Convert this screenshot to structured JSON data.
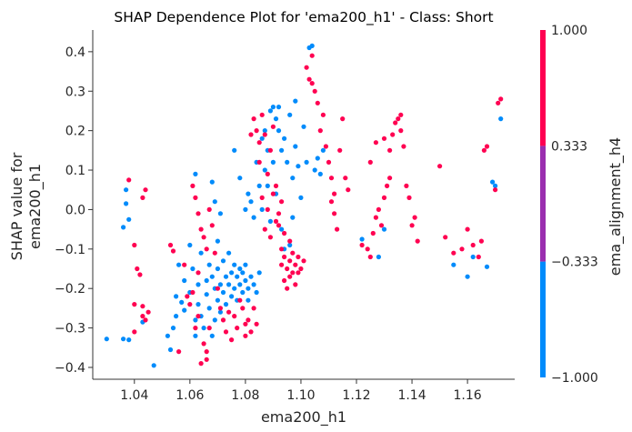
{
  "chart_data": {
    "type": "scatter",
    "title": "SHAP Dependence Plot for 'ema200_h1' - Class: Short",
    "xlabel": "ema200_h1",
    "ylabel_lines": [
      "SHAP value for",
      "ema200_h1"
    ],
    "xlim": [
      1.025,
      1.177
    ],
    "ylim": [
      -0.43,
      0.455
    ],
    "xticks": [
      1.04,
      1.06,
      1.08,
      1.1,
      1.12,
      1.14,
      1.16
    ],
    "xtick_labels": [
      "1.04",
      "1.06",
      "1.08",
      "1.10",
      "1.12",
      "1.14",
      "1.16"
    ],
    "yticks": [
      -0.4,
      -0.3,
      -0.2,
      -0.1,
      0.0,
      0.1,
      0.2,
      0.3,
      0.4
    ],
    "ytick_labels": [
      "−0.4",
      "−0.3",
      "−0.2",
      "−0.1",
      "0.0",
      "0.1",
      "0.2",
      "0.3",
      "0.4"
    ],
    "colorbar": {
      "label": "ema_alignment_h4",
      "tick_labels": [
        "1.000",
        "0.333",
        "−0.333",
        "−1.000"
      ],
      "bands": [
        {
          "from": -1.0,
          "to": -0.333,
          "color": "#008bfb"
        },
        {
          "from": -0.333,
          "to": 0.333,
          "color": "#9a2eaf"
        },
        {
          "from": 0.333,
          "to": 1.0,
          "color": "#ff0051"
        }
      ]
    },
    "colors": {
      "-1": "#008bfb",
      "1": "#ff0051"
    },
    "series": [
      {
        "color_value": -1,
        "points": [
          [
            1.03,
            -0.328
          ],
          [
            1.036,
            -0.328
          ],
          [
            1.038,
            -0.33
          ],
          [
            1.043,
            -0.285
          ],
          [
            1.047,
            -0.395
          ],
          [
            1.037,
            0.05
          ],
          [
            1.037,
            0.015
          ],
          [
            1.036,
            -0.045
          ],
          [
            1.038,
            -0.025
          ],
          [
            1.052,
            -0.32
          ],
          [
            1.053,
            -0.355
          ],
          [
            1.054,
            -0.3
          ],
          [
            1.055,
            -0.27
          ],
          [
            1.055,
            -0.22
          ],
          [
            1.056,
            -0.14
          ],
          [
            1.057,
            -0.235
          ],
          [
            1.058,
            -0.18
          ],
          [
            1.058,
            -0.255
          ],
          [
            1.06,
            -0.09
          ],
          [
            1.06,
            -0.21
          ],
          [
            1.061,
            -0.15
          ],
          [
            1.062,
            -0.28
          ],
          [
            1.062,
            -0.32
          ],
          [
            1.063,
            -0.19
          ],
          [
            1.063,
            -0.24
          ],
          [
            1.064,
            -0.11
          ],
          [
            1.064,
            -0.27
          ],
          [
            1.065,
            -0.3
          ],
          [
            1.066,
            -0.18
          ],
          [
            1.066,
            -0.215
          ],
          [
            1.067,
            -0.25
          ],
          [
            1.067,
            -0.14
          ],
          [
            1.068,
            -0.32
          ],
          [
            1.068,
            -0.17
          ],
          [
            1.069,
            -0.2
          ],
          [
            1.069,
            -0.28
          ],
          [
            1.07,
            -0.15
          ],
          [
            1.07,
            -0.23
          ],
          [
            1.071,
            -0.19
          ],
          [
            1.071,
            -0.26
          ],
          [
            1.072,
            -0.13
          ],
          [
            1.072,
            -0.21
          ],
          [
            1.073,
            -0.17
          ],
          [
            1.073,
            -0.24
          ],
          [
            1.074,
            -0.19
          ],
          [
            1.074,
            -0.11
          ],
          [
            1.075,
            -0.22
          ],
          [
            1.075,
            -0.16
          ],
          [
            1.076,
            -0.14
          ],
          [
            1.076,
            -0.2
          ],
          [
            1.077,
            -0.17
          ],
          [
            1.077,
            -0.23
          ],
          [
            1.078,
            -0.15
          ],
          [
            1.078,
            -0.19
          ],
          [
            1.079,
            -0.16
          ],
          [
            1.079,
            -0.21
          ],
          [
            1.08,
            -0.18
          ],
          [
            1.08,
            -0.14
          ],
          [
            1.081,
            -0.2
          ],
          [
            1.081,
            -0.23
          ],
          [
            1.082,
            -0.17
          ],
          [
            1.083,
            -0.19
          ],
          [
            1.084,
            -0.21
          ],
          [
            1.085,
            -0.16
          ],
          [
            1.076,
            0.15
          ],
          [
            1.078,
            0.08
          ],
          [
            1.08,
            0.0
          ],
          [
            1.081,
            0.04
          ],
          [
            1.082,
            0.02
          ],
          [
            1.083,
            -0.02
          ],
          [
            1.084,
            0.12
          ],
          [
            1.085,
            0.06
          ],
          [
            1.086,
            0.18
          ],
          [
            1.086,
            0.0
          ],
          [
            1.087,
            0.1
          ],
          [
            1.087,
            0.2
          ],
          [
            1.088,
            0.15
          ],
          [
            1.088,
            0.06
          ],
          [
            1.089,
            0.25
          ],
          [
            1.089,
            -0.03
          ],
          [
            1.09,
            0.26
          ],
          [
            1.09,
            0.12
          ],
          [
            1.091,
            0.23
          ],
          [
            1.091,
            0.04
          ],
          [
            1.092,
            0.2
          ],
          [
            1.092,
            0.26
          ],
          [
            1.093,
            0.15
          ],
          [
            1.093,
            -0.05
          ],
          [
            1.094,
            0.18
          ],
          [
            1.095,
            0.12
          ],
          [
            1.096,
            0.24
          ],
          [
            1.097,
            0.08
          ],
          [
            1.097,
            -0.02
          ],
          [
            1.098,
            0.16
          ],
          [
            1.099,
            0.11
          ],
          [
            1.1,
            0.03
          ],
          [
            1.101,
            0.21
          ],
          [
            1.102,
            0.12
          ],
          [
            1.103,
            0.41
          ],
          [
            1.104,
            0.415
          ],
          [
            1.105,
            0.1
          ],
          [
            1.106,
            0.13
          ],
          [
            1.107,
            0.09
          ],
          [
            1.108,
            0.15
          ],
          [
            1.098,
            0.275
          ],
          [
            1.096,
            -0.09
          ],
          [
            1.094,
            -0.1
          ],
          [
            1.062,
            0.09
          ],
          [
            1.068,
            0.07
          ],
          [
            1.07,
            -0.08
          ],
          [
            1.069,
            0.02
          ],
          [
            1.071,
            -0.01
          ],
          [
            1.122,
            -0.075
          ],
          [
            1.128,
            -0.12
          ],
          [
            1.13,
            -0.05
          ],
          [
            1.155,
            -0.14
          ],
          [
            1.16,
            -0.17
          ],
          [
            1.162,
            -0.12
          ],
          [
            1.167,
            -0.145
          ],
          [
            1.169,
            0.07
          ],
          [
            1.17,
            0.06
          ],
          [
            1.172,
            0.23
          ]
        ]
      },
      {
        "color_value": 1,
        "points": [
          [
            1.038,
            0.075
          ],
          [
            1.043,
            0.03
          ],
          [
            1.044,
            0.05
          ],
          [
            1.04,
            -0.09
          ],
          [
            1.04,
            -0.24
          ],
          [
            1.042,
            -0.165
          ],
          [
            1.043,
            -0.245
          ],
          [
            1.044,
            -0.28
          ],
          [
            1.045,
            -0.26
          ],
          [
            1.04,
            -0.31
          ],
          [
            1.041,
            -0.15
          ],
          [
            1.043,
            -0.27
          ],
          [
            1.053,
            -0.09
          ],
          [
            1.054,
            -0.105
          ],
          [
            1.056,
            -0.36
          ],
          [
            1.058,
            -0.14
          ],
          [
            1.059,
            -0.22
          ],
          [
            1.06,
            -0.24
          ],
          [
            1.061,
            -0.21
          ],
          [
            1.062,
            -0.3
          ],
          [
            1.063,
            -0.16
          ],
          [
            1.063,
            -0.27
          ],
          [
            1.064,
            -0.39
          ],
          [
            1.065,
            -0.34
          ],
          [
            1.066,
            -0.36
          ],
          [
            1.066,
            -0.38
          ],
          [
            1.067,
            -0.3
          ],
          [
            1.061,
            0.06
          ],
          [
            1.062,
            0.03
          ],
          [
            1.063,
            -0.01
          ],
          [
            1.064,
            -0.05
          ],
          [
            1.065,
            -0.07
          ],
          [
            1.066,
            -0.1
          ],
          [
            1.067,
            0.0
          ],
          [
            1.068,
            -0.04
          ],
          [
            1.069,
            -0.11
          ],
          [
            1.07,
            -0.2
          ],
          [
            1.071,
            -0.25
          ],
          [
            1.072,
            -0.28
          ],
          [
            1.073,
            -0.31
          ],
          [
            1.074,
            -0.26
          ],
          [
            1.075,
            -0.33
          ],
          [
            1.076,
            -0.27
          ],
          [
            1.077,
            -0.3
          ],
          [
            1.078,
            -0.23
          ],
          [
            1.079,
            -0.25
          ],
          [
            1.08,
            -0.32
          ],
          [
            1.081,
            -0.28
          ],
          [
            1.082,
            -0.31
          ],
          [
            1.083,
            -0.25
          ],
          [
            1.084,
            -0.29
          ],
          [
            1.08,
            -0.29
          ],
          [
            1.082,
            0.19
          ],
          [
            1.083,
            0.23
          ],
          [
            1.084,
            0.2
          ],
          [
            1.085,
            0.17
          ],
          [
            1.085,
            0.12
          ],
          [
            1.086,
            0.24
          ],
          [
            1.086,
            0.03
          ],
          [
            1.087,
            0.19
          ],
          [
            1.087,
            -0.05
          ],
          [
            1.088,
            0.09
          ],
          [
            1.088,
            0.0
          ],
          [
            1.089,
            0.15
          ],
          [
            1.089,
            -0.07
          ],
          [
            1.09,
            0.04
          ],
          [
            1.09,
            0.21
          ],
          [
            1.091,
            -0.03
          ],
          [
            1.091,
            0.06
          ],
          [
            1.092,
            -0.01
          ],
          [
            1.093,
            0.02
          ],
          [
            1.093,
            -0.14
          ],
          [
            1.094,
            -0.18
          ],
          [
            1.094,
            -0.12
          ],
          [
            1.095,
            -0.15
          ],
          [
            1.095,
            -0.2
          ],
          [
            1.096,
            -0.13
          ],
          [
            1.096,
            -0.17
          ],
          [
            1.097,
            -0.16
          ],
          [
            1.097,
            -0.11
          ],
          [
            1.098,
            -0.14
          ],
          [
            1.098,
            -0.19
          ],
          [
            1.099,
            -0.12
          ],
          [
            1.099,
            -0.16
          ],
          [
            1.1,
            -0.15
          ],
          [
            1.101,
            -0.13
          ],
          [
            1.096,
            -0.08
          ],
          [
            1.094,
            -0.06
          ],
          [
            1.093,
            -0.1
          ],
          [
            1.092,
            -0.04
          ],
          [
            1.102,
            0.36
          ],
          [
            1.103,
            0.33
          ],
          [
            1.104,
            0.39
          ],
          [
            1.104,
            0.32
          ],
          [
            1.105,
            0.3
          ],
          [
            1.106,
            0.27
          ],
          [
            1.107,
            0.2
          ],
          [
            1.108,
            0.24
          ],
          [
            1.109,
            0.16
          ],
          [
            1.11,
            0.12
          ],
          [
            1.111,
            0.08
          ],
          [
            1.112,
            0.04
          ],
          [
            1.111,
            0.02
          ],
          [
            1.112,
            -0.01
          ],
          [
            1.113,
            -0.05
          ],
          [
            1.114,
            0.15
          ],
          [
            1.115,
            0.23
          ],
          [
            1.116,
            0.08
          ],
          [
            1.117,
            0.05
          ],
          [
            1.122,
            -0.09
          ],
          [
            1.124,
            -0.1
          ],
          [
            1.125,
            -0.12
          ],
          [
            1.126,
            -0.06
          ],
          [
            1.127,
            -0.02
          ],
          [
            1.128,
            0.0
          ],
          [
            1.129,
            -0.04
          ],
          [
            1.13,
            0.03
          ],
          [
            1.131,
            0.06
          ],
          [
            1.132,
            0.08
          ],
          [
            1.133,
            0.19
          ],
          [
            1.134,
            0.22
          ],
          [
            1.135,
            0.23
          ],
          [
            1.136,
            0.2
          ],
          [
            1.137,
            0.16
          ],
          [
            1.138,
            0.06
          ],
          [
            1.139,
            0.03
          ],
          [
            1.14,
            -0.04
          ],
          [
            1.141,
            -0.02
          ],
          [
            1.142,
            -0.08
          ],
          [
            1.127,
            0.17
          ],
          [
            1.13,
            0.18
          ],
          [
            1.132,
            0.15
          ],
          [
            1.125,
            0.12
          ],
          [
            1.136,
            0.24
          ],
          [
            1.15,
            0.11
          ],
          [
            1.152,
            -0.07
          ],
          [
            1.155,
            -0.11
          ],
          [
            1.158,
            -0.1
          ],
          [
            1.16,
            -0.05
          ],
          [
            1.162,
            -0.09
          ],
          [
            1.164,
            -0.12
          ],
          [
            1.165,
            -0.08
          ],
          [
            1.166,
            0.15
          ],
          [
            1.167,
            0.16
          ],
          [
            1.17,
            0.05
          ],
          [
            1.171,
            0.27
          ],
          [
            1.172,
            0.28
          ]
        ]
      }
    ]
  }
}
